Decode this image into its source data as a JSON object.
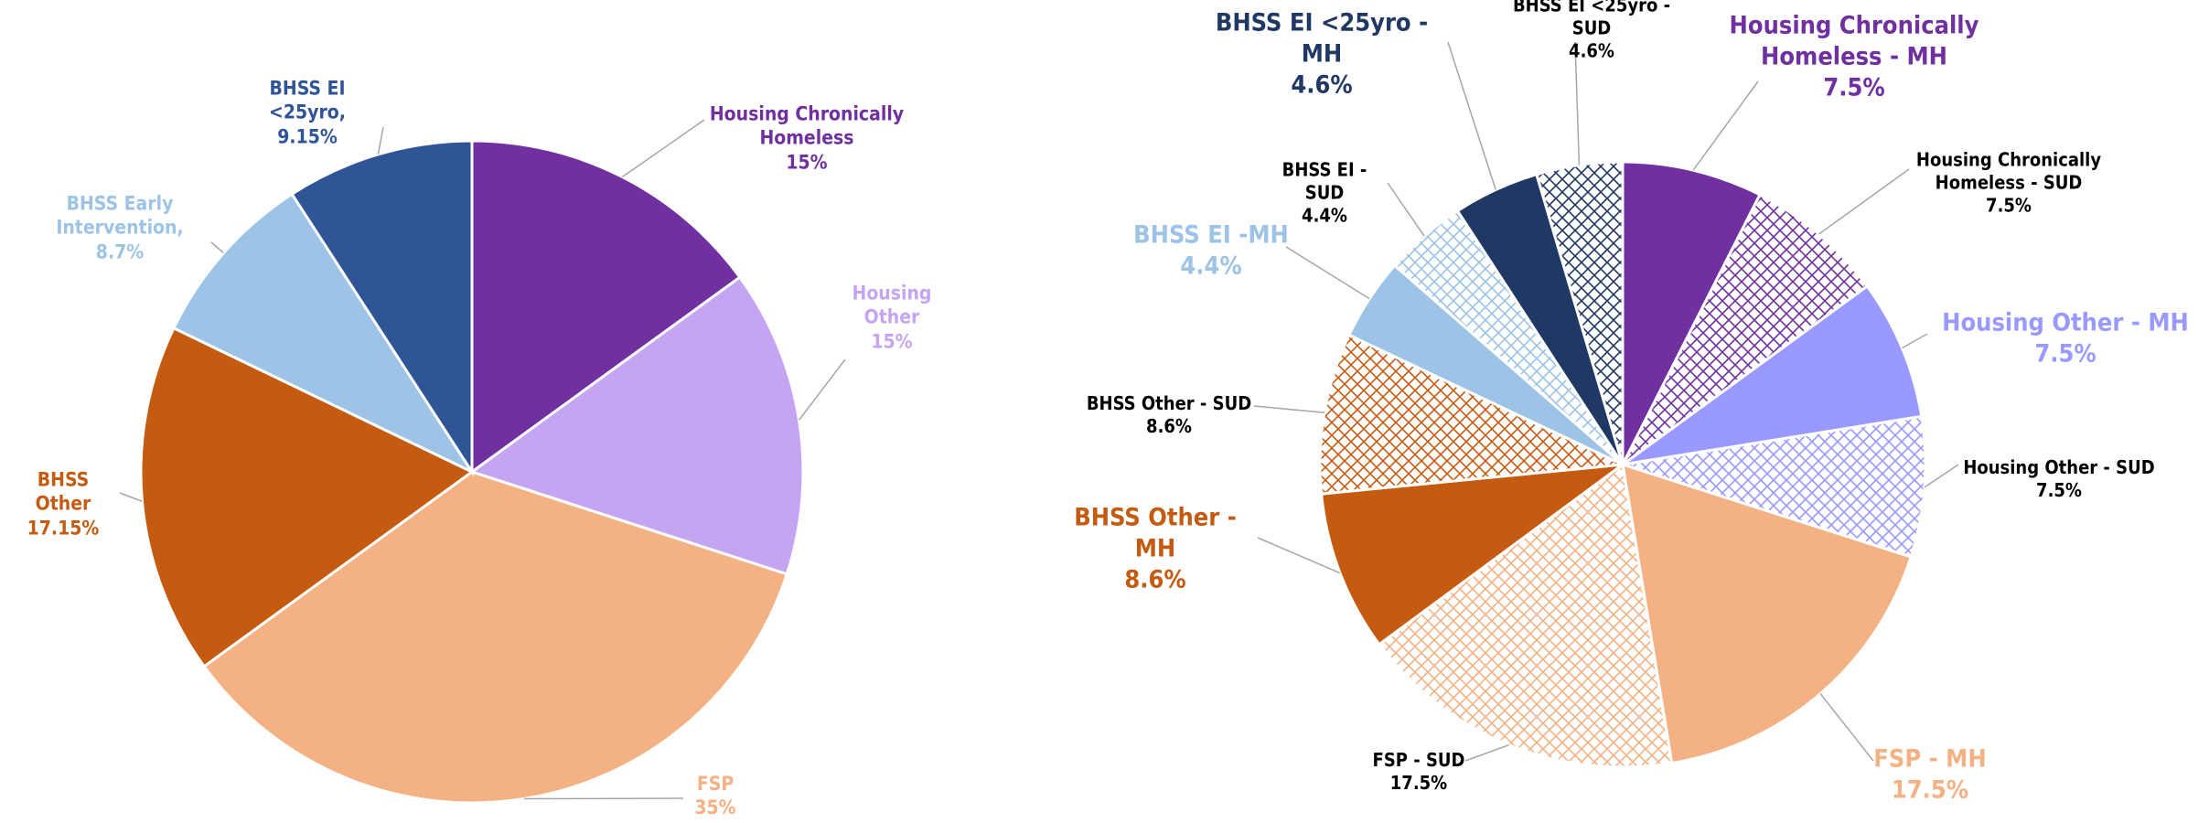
{
  "chart_data": [
    {
      "type": "pie",
      "categories": [
        "Housing Chronically Homeless",
        "Housing Other",
        "FSP",
        "BHSS Other",
        "BHSS Early Intervention,",
        "BHSS EI <25yro,"
      ],
      "values": [
        15,
        15,
        35,
        17.15,
        8.7,
        9.15
      ],
      "value_labels": [
        "15%",
        "15%",
        "35%",
        "17.15%",
        "8.7%",
        "9.15%"
      ],
      "colors": [
        "#7030a0",
        "#c5a5f2",
        "#f4b183",
        "#c55a11",
        "#9dc3e6",
        "#2f5597"
      ]
    },
    {
      "type": "pie",
      "categories": [
        "Housing Chronically Homeless - MH",
        "Housing Chronically Homeless - SUD",
        "Housing Other - MH",
        "Housing Other - SUD",
        "FSP - MH",
        "FSP - SUD",
        "BHSS Other - MH",
        "BHSS Other - SUD",
        "BHSS EI -MH",
        "BHSS EI -SUD",
        "BHSS EI <25yro - MH",
        "BHSS EI <25yro -SUD"
      ],
      "values": [
        7.5,
        7.5,
        7.5,
        7.5,
        17.5,
        17.5,
        8.6,
        8.6,
        4.4,
        4.4,
        4.6,
        4.6
      ],
      "value_labels": [
        "7.5%",
        "7.5%",
        "7.5%",
        "7.5%",
        "17.5%",
        "17.5%",
        "8.6%",
        "8.6%",
        "4.4%",
        "4.4%",
        "4.6%",
        "4.6%"
      ],
      "colors": [
        "#7030a0",
        "#7030a0",
        "#9999ff",
        "#9999ff",
        "#f4b183",
        "#f4b183",
        "#c55a11",
        "#c55a11",
        "#9dc3e6",
        "#9dc3e6",
        "#203864",
        "#203864"
      ],
      "patterns": [
        "solid",
        "hatch",
        "solid",
        "hatch",
        "solid",
        "hatch",
        "solid",
        "hatch",
        "solid",
        "hatch",
        "solid",
        "hatch"
      ]
    }
  ]
}
